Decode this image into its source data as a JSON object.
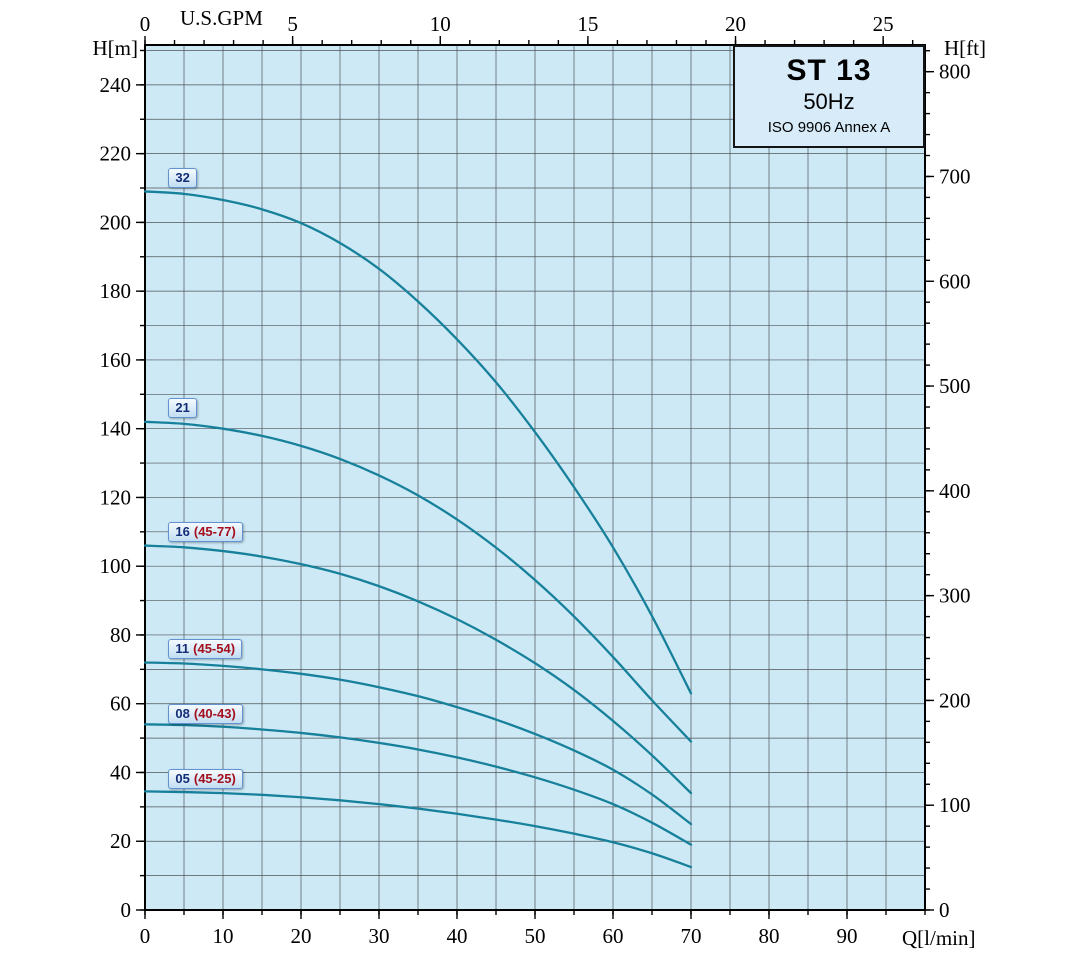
{
  "title_box": {
    "model": "ST 13",
    "frequency": "50Hz",
    "standard": "ISO 9906 Annex A"
  },
  "axis_labels": {
    "left": "H[m]",
    "right": "H[ft]",
    "bottom": "Q[l/min]",
    "top": "U.S.GPM"
  },
  "colors": {
    "plot_bg": "#cde9f6",
    "grid": "#2f2f2f",
    "frame": "#000000",
    "curve": "#17809a",
    "label_value": "#142d78",
    "label_range": "#a40f1d"
  },
  "chart_data": {
    "type": "line",
    "title": "ST 13 50Hz ISO 9906 Annex A pump performance curves",
    "x_bottom": {
      "label": "Q[l/min]",
      "min": 0,
      "max": 100,
      "ticks": [
        0,
        10,
        20,
        30,
        40,
        50,
        60,
        70,
        80,
        90
      ],
      "grid_step": 5,
      "minor_step": 5
    },
    "x_top": {
      "label": "U.S.GPM",
      "ticks": [
        0,
        5,
        10,
        15,
        20,
        25
      ],
      "minor_step": 1,
      "gpm_to_lmin": 3.78541
    },
    "y_left": {
      "label": "H[m]",
      "min": 0,
      "max": 251.6,
      "ticks": [
        0,
        20,
        40,
        60,
        80,
        100,
        120,
        140,
        160,
        180,
        200,
        220,
        240
      ],
      "grid_step": 10,
      "minor_step": 10
    },
    "y_right": {
      "label": "H[ft]",
      "ticks": [
        0,
        100,
        200,
        300,
        400,
        500,
        600,
        700,
        800
      ],
      "minor_step": 20,
      "ft_to_m": 0.3048
    },
    "grid": true,
    "legend_position": "none",
    "series": [
      {
        "name": "32",
        "label": {
          "value": "32",
          "range": "",
          "x": 3,
          "y": 213
        },
        "points": [
          [
            0,
            209
          ],
          [
            5,
            208.3
          ],
          [
            10,
            206.5
          ],
          [
            15,
            203.8
          ],
          [
            20,
            199.8
          ],
          [
            25,
            194
          ],
          [
            30,
            186.5
          ],
          [
            35,
            177
          ],
          [
            40,
            166
          ],
          [
            45,
            153.5
          ],
          [
            50,
            139
          ],
          [
            55,
            123
          ],
          [
            60,
            105.5
          ],
          [
            65,
            85.5
          ],
          [
            70,
            63
          ]
        ]
      },
      {
        "name": "21",
        "label": {
          "value": "21",
          "range": "",
          "x": 3,
          "y": 146
        },
        "points": [
          [
            0,
            142
          ],
          [
            5,
            141.4
          ],
          [
            10,
            140
          ],
          [
            15,
            137.9
          ],
          [
            20,
            135
          ],
          [
            25,
            131.2
          ],
          [
            30,
            126.4
          ],
          [
            35,
            120.6
          ],
          [
            40,
            113.6
          ],
          [
            45,
            105.4
          ],
          [
            50,
            96
          ],
          [
            55,
            85.4
          ],
          [
            60,
            73.6
          ],
          [
            65,
            61
          ],
          [
            70,
            49
          ]
        ]
      },
      {
        "name": "16 (45-77)",
        "label": {
          "value": "16",
          "range": "(45-77)",
          "x": 3,
          "y": 110
        },
        "points": [
          [
            0,
            106
          ],
          [
            5,
            105.5
          ],
          [
            10,
            104.4
          ],
          [
            15,
            102.8
          ],
          [
            20,
            100.6
          ],
          [
            25,
            97.8
          ],
          [
            30,
            94.2
          ],
          [
            35,
            89.8
          ],
          [
            40,
            84.6
          ],
          [
            45,
            78.6
          ],
          [
            50,
            71.8
          ],
          [
            55,
            64
          ],
          [
            60,
            55
          ],
          [
            65,
            45
          ],
          [
            70,
            34
          ]
        ]
      },
      {
        "name": "11 (45-54)",
        "label": {
          "value": "11",
          "range": "(45-54)",
          "x": 3,
          "y": 76
        },
        "points": [
          [
            0,
            72
          ],
          [
            5,
            71.7
          ],
          [
            10,
            71
          ],
          [
            15,
            70
          ],
          [
            20,
            68.7
          ],
          [
            25,
            67
          ],
          [
            30,
            64.8
          ],
          [
            35,
            62.2
          ],
          [
            40,
            59
          ],
          [
            45,
            55.4
          ],
          [
            50,
            51.2
          ],
          [
            55,
            46.4
          ],
          [
            60,
            40.8
          ],
          [
            65,
            33.6
          ],
          [
            70,
            25
          ]
        ]
      },
      {
        "name": "08 (40-43)",
        "label": {
          "value": "08",
          "range": "(40-43)",
          "x": 3,
          "y": 57
        },
        "points": [
          [
            0,
            54
          ],
          [
            5,
            53.8
          ],
          [
            10,
            53.3
          ],
          [
            15,
            52.5
          ],
          [
            20,
            51.5
          ],
          [
            25,
            50.2
          ],
          [
            30,
            48.6
          ],
          [
            35,
            46.7
          ],
          [
            40,
            44.4
          ],
          [
            45,
            41.7
          ],
          [
            50,
            38.6
          ],
          [
            55,
            35
          ],
          [
            60,
            30.8
          ],
          [
            65,
            25.4
          ],
          [
            70,
            19
          ]
        ]
      },
      {
        "name": "05 (45-25)",
        "label": {
          "value": "05",
          "range": "(45-25)",
          "x": 3,
          "y": 38
        },
        "points": [
          [
            0,
            34.5
          ],
          [
            5,
            34.3
          ],
          [
            10,
            34
          ],
          [
            15,
            33.5
          ],
          [
            20,
            32.8
          ],
          [
            25,
            31.9
          ],
          [
            30,
            30.8
          ],
          [
            35,
            29.5
          ],
          [
            40,
            28
          ],
          [
            45,
            26.3
          ],
          [
            50,
            24.4
          ],
          [
            55,
            22.2
          ],
          [
            60,
            19.7
          ],
          [
            65,
            16.5
          ],
          [
            70,
            12.5
          ]
        ]
      }
    ]
  }
}
